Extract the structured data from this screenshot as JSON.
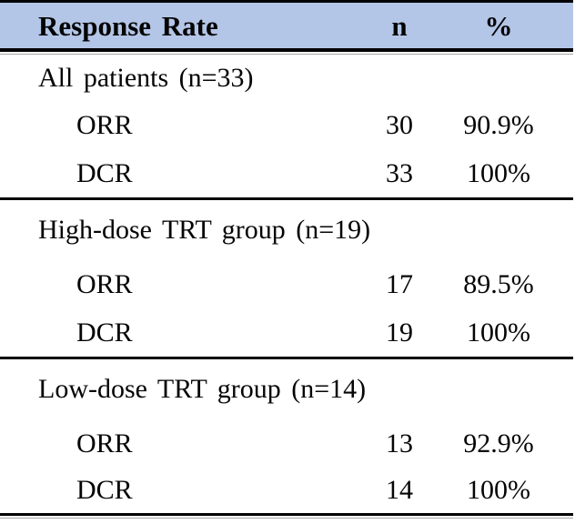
{
  "table": {
    "header": {
      "label": "Response Rate",
      "n": "n",
      "pct": "%"
    },
    "style": {
      "header_bg": "#b4c6e7",
      "border_color": "#000000"
    },
    "sections": [
      {
        "title": "All patients (n=33)",
        "rows": [
          {
            "label": "ORR",
            "n": "30",
            "pct": "90.9%"
          },
          {
            "label": "DCR",
            "n": "33",
            "pct": "100%"
          }
        ]
      },
      {
        "title": "High-dose TRT group (n=19)",
        "rows": [
          {
            "label": "ORR",
            "n": "17",
            "pct": "89.5%"
          },
          {
            "label": "DCR",
            "n": "19",
            "pct": "100%"
          }
        ]
      },
      {
        "title": "Low-dose TRT group (n=14)",
        "rows": [
          {
            "label": "ORR",
            "n": "13",
            "pct": "92.9%"
          },
          {
            "label": "DCR",
            "n": "14",
            "pct": "100%"
          }
        ]
      }
    ]
  },
  "chart_data": {
    "type": "table",
    "title": "Response Rate",
    "columns": [
      "Response Rate",
      "n",
      "%"
    ],
    "rows": [
      [
        "All patients (n=33)",
        "",
        ""
      ],
      [
        "ORR",
        30,
        "90.9%"
      ],
      [
        "DCR",
        33,
        "100%"
      ],
      [
        "High-dose TRT group (n=19)",
        "",
        ""
      ],
      [
        "ORR",
        17,
        "89.5%"
      ],
      [
        "DCR",
        19,
        "100%"
      ],
      [
        "Low-dose TRT group (n=14)",
        "",
        ""
      ],
      [
        "ORR",
        13,
        "92.9%"
      ],
      [
        "DCR",
        14,
        "100%"
      ]
    ]
  }
}
